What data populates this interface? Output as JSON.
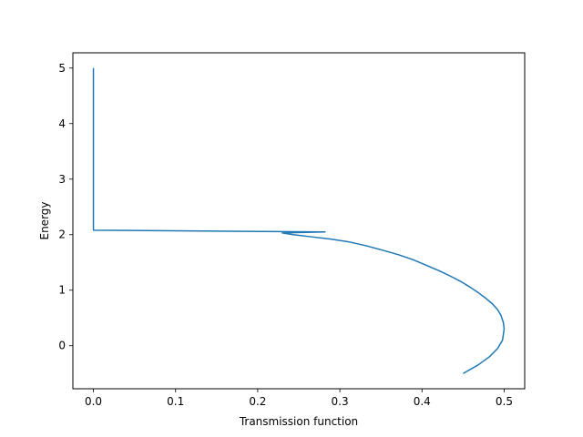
{
  "chart_data": {
    "type": "line",
    "title": "",
    "xlabel": "Transmission function",
    "ylabel": "Energy",
    "xlim": [
      -0.025,
      0.525
    ],
    "ylim": [
      -0.775,
      5.275
    ],
    "xticks": [
      0.0,
      0.1,
      0.2,
      0.3,
      0.4,
      0.5
    ],
    "xtick_labels": [
      "0.0",
      "0.1",
      "0.2",
      "0.3",
      "0.4",
      "0.5"
    ],
    "yticks": [
      0,
      1,
      2,
      3,
      4,
      5
    ],
    "ytick_labels": [
      "0",
      "1",
      "2",
      "3",
      "4",
      "5"
    ],
    "grid": false,
    "legend": "none",
    "series": [
      {
        "color": "#1f77b4",
        "x": [
          0.45,
          0.468,
          0.482,
          0.492,
          0.498,
          0.5,
          0.499,
          0.496,
          0.492,
          0.486,
          0.478,
          0.469,
          0.459,
          0.448,
          0.435,
          0.421,
          0.405,
          0.389,
          0.371,
          0.352,
          0.332,
          0.311,
          0.289,
          0.266,
          0.243,
          0.23,
          0.282,
          0.0,
          0.0
        ],
        "y": [
          -0.5,
          -0.35,
          -0.2,
          -0.05,
          0.1,
          0.3,
          0.42,
          0.55,
          0.65,
          0.75,
          0.85,
          0.95,
          1.05,
          1.15,
          1.25,
          1.35,
          1.45,
          1.55,
          1.64,
          1.72,
          1.8,
          1.87,
          1.92,
          1.96,
          2.0,
          2.03,
          2.05,
          2.08,
          5.0
        ]
      }
    ]
  }
}
